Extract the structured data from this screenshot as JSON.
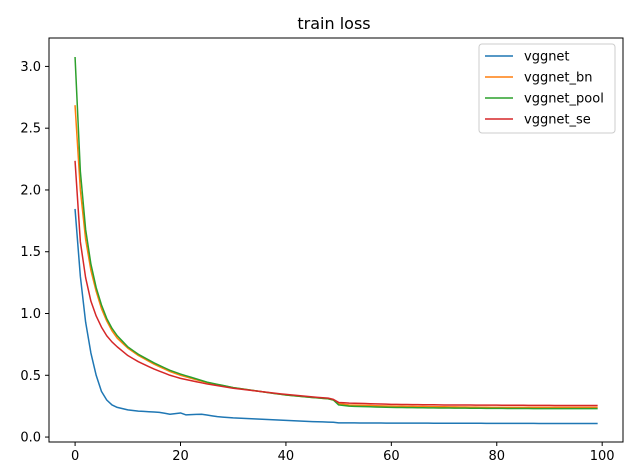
{
  "chart_data": {
    "type": "line",
    "title": "train loss",
    "xlabel": "",
    "ylabel": "",
    "xlim": [
      -4.95,
      103.95
    ],
    "ylim": [
      -0.04,
      3.23
    ],
    "xticks": [
      0,
      20,
      40,
      60,
      80,
      100
    ],
    "yticks": [
      0.0,
      0.5,
      1.0,
      1.5,
      2.0,
      2.5,
      3.0
    ],
    "xtick_labels": [
      "0",
      "20",
      "40",
      "60",
      "80",
      "100"
    ],
    "ytick_labels": [
      "0.0",
      "0.5",
      "1.0",
      "1.5",
      "2.0",
      "2.5",
      "3.0"
    ],
    "grid": false,
    "legend_position": "top-right",
    "series": [
      {
        "name": "vggnet",
        "color": "#1f77b4",
        "anchors": [
          [
            0,
            1.84
          ],
          [
            1,
            1.3
          ],
          [
            2,
            0.93
          ],
          [
            3,
            0.68
          ],
          [
            4,
            0.5
          ],
          [
            5,
            0.37
          ],
          [
            6,
            0.3
          ],
          [
            7,
            0.26
          ],
          [
            8,
            0.24
          ],
          [
            10,
            0.22
          ],
          [
            12,
            0.21
          ],
          [
            14,
            0.205
          ],
          [
            16,
            0.2
          ],
          [
            18,
            0.185
          ],
          [
            19,
            0.19
          ],
          [
            20,
            0.195
          ],
          [
            21,
            0.18
          ],
          [
            24,
            0.185
          ],
          [
            27,
            0.165
          ],
          [
            30,
            0.155
          ],
          [
            35,
            0.145
          ],
          [
            40,
            0.135
          ],
          [
            45,
            0.125
          ],
          [
            49,
            0.12
          ],
          [
            50,
            0.115
          ],
          [
            60,
            0.113
          ],
          [
            70,
            0.112
          ],
          [
            80,
            0.111
          ],
          [
            90,
            0.11
          ],
          [
            99,
            0.11
          ]
        ]
      },
      {
        "name": "vggnet_bn",
        "color": "#ff7f0e",
        "anchors": [
          [
            0,
            2.68
          ],
          [
            1,
            2.0
          ],
          [
            2,
            1.6
          ],
          [
            3,
            1.35
          ],
          [
            4,
            1.18
          ],
          [
            5,
            1.04
          ],
          [
            6,
            0.94
          ],
          [
            7,
            0.86
          ],
          [
            8,
            0.8
          ],
          [
            10,
            0.72
          ],
          [
            12,
            0.66
          ],
          [
            15,
            0.59
          ],
          [
            18,
            0.53
          ],
          [
            20,
            0.5
          ],
          [
            25,
            0.44
          ],
          [
            30,
            0.4
          ],
          [
            35,
            0.37
          ],
          [
            40,
            0.34
          ],
          [
            45,
            0.32
          ],
          [
            48,
            0.31
          ],
          [
            49,
            0.3
          ],
          [
            50,
            0.27
          ],
          [
            52,
            0.26
          ],
          [
            60,
            0.25
          ],
          [
            70,
            0.245
          ],
          [
            80,
            0.24
          ],
          [
            90,
            0.24
          ],
          [
            99,
            0.24
          ]
        ]
      },
      {
        "name": "vggnet_pool",
        "color": "#2ca02c",
        "anchors": [
          [
            0,
            3.07
          ],
          [
            1,
            2.15
          ],
          [
            2,
            1.68
          ],
          [
            3,
            1.4
          ],
          [
            4,
            1.21
          ],
          [
            5,
            1.07
          ],
          [
            6,
            0.96
          ],
          [
            7,
            0.88
          ],
          [
            8,
            0.82
          ],
          [
            10,
            0.73
          ],
          [
            12,
            0.67
          ],
          [
            15,
            0.6
          ],
          [
            18,
            0.54
          ],
          [
            20,
            0.51
          ],
          [
            25,
            0.445
          ],
          [
            30,
            0.4
          ],
          [
            35,
            0.37
          ],
          [
            40,
            0.34
          ],
          [
            45,
            0.32
          ],
          [
            48,
            0.31
          ],
          [
            49,
            0.3
          ],
          [
            50,
            0.26
          ],
          [
            52,
            0.25
          ],
          [
            60,
            0.24
          ],
          [
            70,
            0.235
          ],
          [
            80,
            0.232
          ],
          [
            90,
            0.23
          ],
          [
            99,
            0.23
          ]
        ]
      },
      {
        "name": "vggnet_se",
        "color": "#d62728",
        "anchors": [
          [
            0,
            2.23
          ],
          [
            1,
            1.58
          ],
          [
            2,
            1.29
          ],
          [
            3,
            1.1
          ],
          [
            4,
            0.98
          ],
          [
            5,
            0.89
          ],
          [
            6,
            0.82
          ],
          [
            7,
            0.77
          ],
          [
            8,
            0.73
          ],
          [
            10,
            0.66
          ],
          [
            12,
            0.61
          ],
          [
            15,
            0.55
          ],
          [
            18,
            0.5
          ],
          [
            20,
            0.475
          ],
          [
            25,
            0.43
          ],
          [
            30,
            0.395
          ],
          [
            35,
            0.37
          ],
          [
            40,
            0.345
          ],
          [
            45,
            0.325
          ],
          [
            48,
            0.315
          ],
          [
            49,
            0.305
          ],
          [
            50,
            0.28
          ],
          [
            52,
            0.275
          ],
          [
            60,
            0.265
          ],
          [
            70,
            0.26
          ],
          [
            80,
            0.258
          ],
          [
            90,
            0.256
          ],
          [
            99,
            0.255
          ]
        ]
      }
    ]
  }
}
